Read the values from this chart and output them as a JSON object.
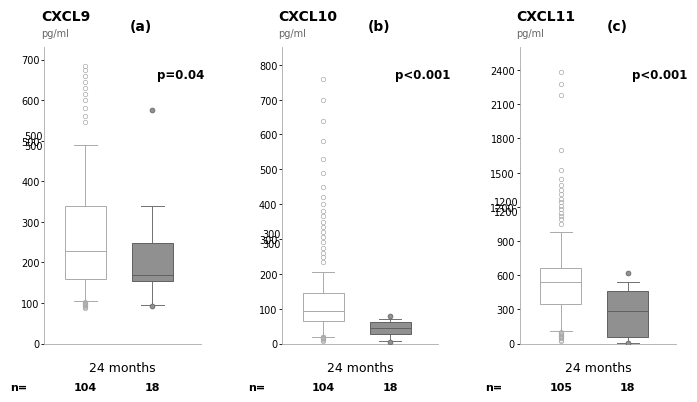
{
  "panels": [
    {
      "label": "(a)",
      "title": "CXCL9",
      "ylabel": "pg/ml",
      "pvalue": "p=0.04",
      "xlabel": "24 months",
      "n_open": "104",
      "n_closed": "18",
      "yticks": [
        0,
        100,
        200,
        300,
        400,
        500,
        600,
        700
      ],
      "ylim": [
        0,
        730
      ],
      "extra_ticks": [
        [
          500,
          500
        ]
      ],
      "open_box": {
        "q1": 160,
        "median": 228,
        "q3": 340,
        "whisker_low": 104,
        "whisker_high": 490,
        "outliers_high": [
          545,
          560,
          580,
          600,
          615,
          630,
          645,
          660,
          675,
          685
        ],
        "outliers_low": [
          88,
          90,
          92,
          94,
          95,
          97,
          98,
          100,
          101,
          103
        ]
      },
      "closed_box": {
        "q1": 155,
        "median": 168,
        "q3": 248,
        "whisker_low": 95,
        "whisker_high": 340,
        "outliers_high": [
          575
        ],
        "outliers_low": [
          92
        ]
      }
    },
    {
      "label": "(b)",
      "title": "CXCL10",
      "ylabel": "pg/ml",
      "pvalue": "p<0.001",
      "xlabel": "24 months",
      "n_open": "104",
      "n_closed": "18",
      "yticks": [
        0,
        100,
        200,
        300,
        400,
        500,
        600,
        700,
        800
      ],
      "ylim": [
        0,
        850
      ],
      "extra_ticks": [
        [
          300,
          300
        ]
      ],
      "open_box": {
        "q1": 65,
        "median": 93,
        "q3": 145,
        "whisker_low": 20,
        "whisker_high": 205,
        "outliers_high": [
          235,
          248,
          260,
          275,
          290,
          305,
          320,
          335,
          350,
          365,
          380,
          400,
          420,
          450,
          490,
          530,
          580,
          640,
          700,
          760
        ],
        "outliers_low": [
          7,
          10,
          13,
          15,
          17,
          18,
          19,
          20
        ]
      },
      "closed_box": {
        "q1": 28,
        "median": 45,
        "q3": 63,
        "whisker_low": 8,
        "whisker_high": 70,
        "outliers_high": [
          78
        ],
        "outliers_low": [
          5
        ]
      }
    },
    {
      "label": "(c)",
      "title": "CXCL11",
      "ylabel": "pg/ml",
      "pvalue": "p<0.001",
      "xlabel": "24 months",
      "n_open": "105",
      "n_closed": "18",
      "yticks": [
        0,
        300,
        600,
        900,
        1200,
        1500,
        1800,
        2100,
        2400
      ],
      "ylim": [
        0,
        2600
      ],
      "extra_ticks": [
        [
          1200,
          1200
        ]
      ],
      "open_box": {
        "q1": 350,
        "median": 540,
        "q3": 660,
        "whisker_low": 110,
        "whisker_high": 975,
        "outliers_high": [
          1050,
          1090,
          1120,
          1150,
          1180,
          1210,
          1240,
          1270,
          1310,
          1350,
          1390,
          1440,
          1520,
          1700,
          2180,
          2280,
          2380
        ],
        "outliers_low": [
          25,
          35,
          45,
          52,
          58,
          64,
          70,
          76,
          82,
          88,
          94,
          100
        ]
      },
      "closed_box": {
        "q1": 55,
        "median": 285,
        "q3": 460,
        "whisker_low": 8,
        "whisker_high": 540,
        "outliers_high": [
          620
        ],
        "outliers_low": [
          3
        ]
      }
    }
  ],
  "open_color": "#ffffff",
  "closed_color": "#909090",
  "open_edge": "#aaaaaa",
  "closed_edge": "#606060",
  "whisker_color": "#aaaaaa",
  "closed_whisker_color": "#707070",
  "background": "#ffffff"
}
